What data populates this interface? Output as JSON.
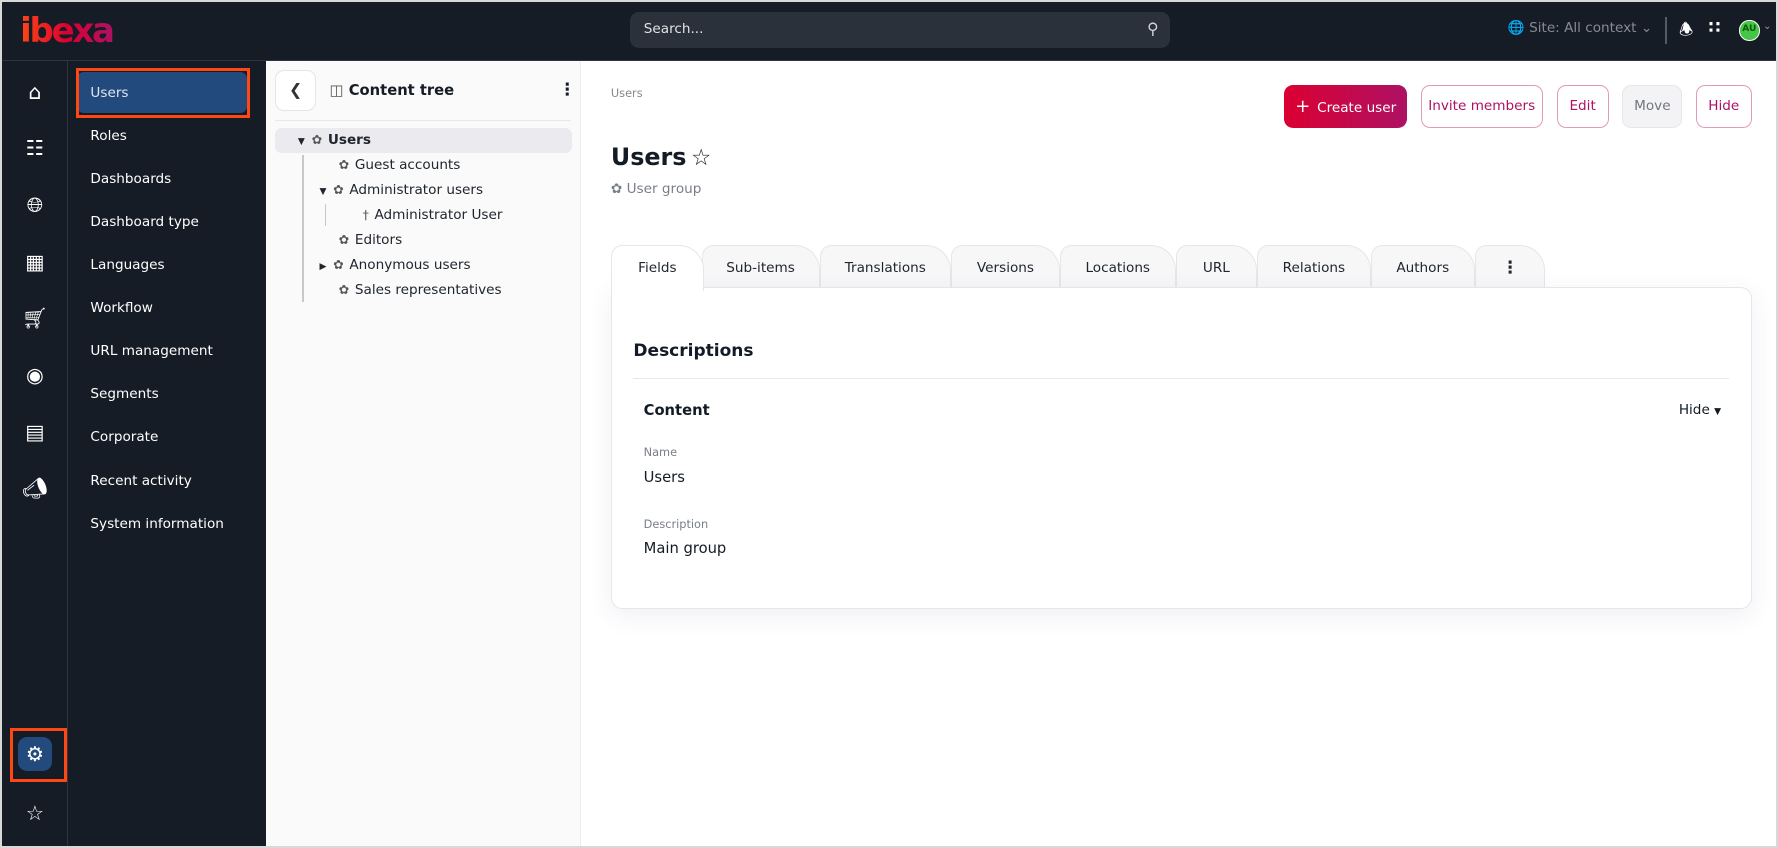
{
  "header": {
    "logo": "ibexa",
    "search_placeholder": "Search...",
    "site_selector": "Site: All context",
    "avatar_initials": "AU"
  },
  "colors": {
    "accent": "#ae1164",
    "primary_gradient_start": "#db0032",
    "sidebar_bg": "#161c26",
    "selected": "#234a7d",
    "highlight": "#ff4713"
  },
  "rail": {
    "icons": [
      "home-icon",
      "sitemap-icon",
      "globe-icon",
      "product-catalog-icon",
      "cart-icon",
      "customer-targeting-icon",
      "form-icon",
      "megaphone-icon",
      "gear-icon",
      "star-icon"
    ],
    "selected": "gear-icon"
  },
  "sidebar": {
    "items": [
      {
        "label": "Users",
        "active": true
      },
      {
        "label": "Roles"
      },
      {
        "label": "Dashboards"
      },
      {
        "label": "Dashboard type"
      },
      {
        "label": "Languages"
      },
      {
        "label": "Workflow"
      },
      {
        "label": "URL management"
      },
      {
        "label": "Segments"
      },
      {
        "label": "Corporate"
      },
      {
        "label": "Recent activity"
      },
      {
        "label": "System information"
      }
    ]
  },
  "tree": {
    "title": "Content tree",
    "nodes": [
      {
        "label": "Users",
        "expanded": true,
        "selected": true
      },
      {
        "label": "Guest accounts"
      },
      {
        "label": "Administrator users",
        "expanded": true
      },
      {
        "label": "Administrator User"
      },
      {
        "label": "Editors"
      },
      {
        "label": "Anonymous users",
        "expanded": false
      },
      {
        "label": "Sales representatives"
      }
    ]
  },
  "main": {
    "breadcrumb": "Users",
    "title": "Users",
    "content_type": "User group",
    "actions": {
      "create": "Create user",
      "invite": "Invite members",
      "edit": "Edit",
      "move": "Move",
      "hide": "Hide"
    },
    "tabs": [
      "Fields",
      "Sub-items",
      "Translations",
      "Versions",
      "Locations",
      "URL",
      "Relations",
      "Authors"
    ],
    "active_tab": "Fields",
    "section_title": "Descriptions",
    "group_title": "Content",
    "group_toggle": "Hide",
    "fields": [
      {
        "label": "Name",
        "value": "Users"
      },
      {
        "label": "Description",
        "value": "Main group"
      }
    ]
  }
}
